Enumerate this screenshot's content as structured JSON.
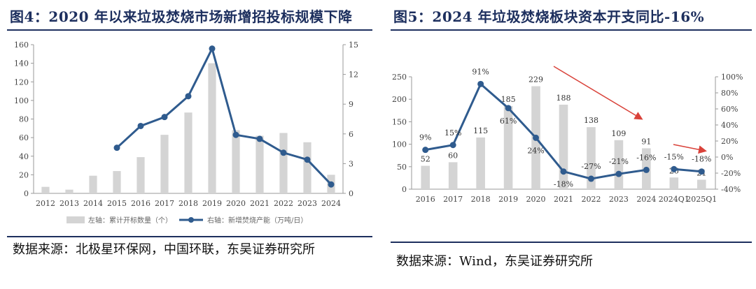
{
  "figures": {
    "left_title": "图4：2020 年以来垃圾焚烧市场新增招投标规模下降",
    "right_title": "图5：2024 年垃圾焚烧板块资本开支同比-16%",
    "left_source": "数据来源：北极星环保网，中国环联，东吴证券研究所",
    "right_source": "数据来源：Wind，东吴证券研究所"
  },
  "colors": {
    "bar": "#d4d4d4",
    "line": "#2f5b8e",
    "arrow": "#d9423a",
    "title": "#1d2f5e"
  },
  "chart_data": [
    {
      "type": "bar+line",
      "categories": [
        "2012",
        "2013",
        "2014",
        "2015",
        "2016",
        "2017",
        "2018",
        "2019",
        "2020",
        "2021",
        "2022",
        "2023",
        "2024"
      ],
      "series": [
        {
          "name": "左轴：累计开标数量（个）",
          "type": "bar",
          "axis": "left",
          "values": [
            7,
            4,
            19,
            24,
            39,
            63,
            87,
            140,
            68,
            62,
            65,
            55,
            20
          ]
        },
        {
          "name": "右轴：新增焚烧产能（万吨/日）",
          "type": "line",
          "axis": "right",
          "values": [
            null,
            null,
            null,
            4.6,
            6.8,
            7.7,
            9.8,
            14.6,
            5.9,
            5.5,
            4.1,
            3.4,
            0.9
          ]
        }
      ],
      "y_left": {
        "min": 0,
        "max": 160,
        "ticks": [
          "0",
          "20",
          "40",
          "60",
          "80",
          "100",
          "120",
          "140",
          "160"
        ]
      },
      "y_right": {
        "min": 0,
        "max": 15,
        "ticks": [
          "0",
          "3",
          "6",
          "9",
          "12",
          "15"
        ]
      },
      "legend_position": "bottom",
      "grid": false
    },
    {
      "type": "bar+line",
      "categories": [
        "2016",
        "2017",
        "2018",
        "2019",
        "2020",
        "2021",
        "2022",
        "2023",
        "2024",
        "2024Q1",
        "2025Q1"
      ],
      "series": [
        {
          "type": "bar",
          "axis": "left",
          "values": [
            52,
            60,
            115,
            185,
            229,
            188,
            138,
            109,
            91,
            26,
            21
          ],
          "labels": [
            "52",
            "60",
            "115",
            "185",
            "229",
            "188",
            "138",
            "109",
            "91",
            "26",
            "21"
          ]
        },
        {
          "type": "line",
          "axis": "right",
          "values": [
            9,
            15,
            91,
            61,
            24,
            -18,
            -27,
            -21,
            -16,
            -15,
            -18
          ],
          "labels": [
            "9%",
            "15%",
            "91%",
            "61%",
            "24%",
            "-18%",
            "-27%",
            "-21%",
            "-16%",
            "-15%",
            "-18%"
          ]
        }
      ],
      "y_left": {
        "min": 0,
        "max": 250,
        "ticks": [
          "0",
          "50",
          "100",
          "150",
          "200",
          "250"
        ]
      },
      "y_right": {
        "min": -40,
        "max": 100,
        "ticks": [
          "-40%",
          "-20%",
          "0%",
          "20%",
          "40%",
          "60%",
          "80%",
          "100%"
        ]
      },
      "annotations": [
        "downward red arrow from 2020 to 2024",
        "downward red arrow from 2024Q1 to 2025Q1"
      ],
      "grid": false
    }
  ]
}
